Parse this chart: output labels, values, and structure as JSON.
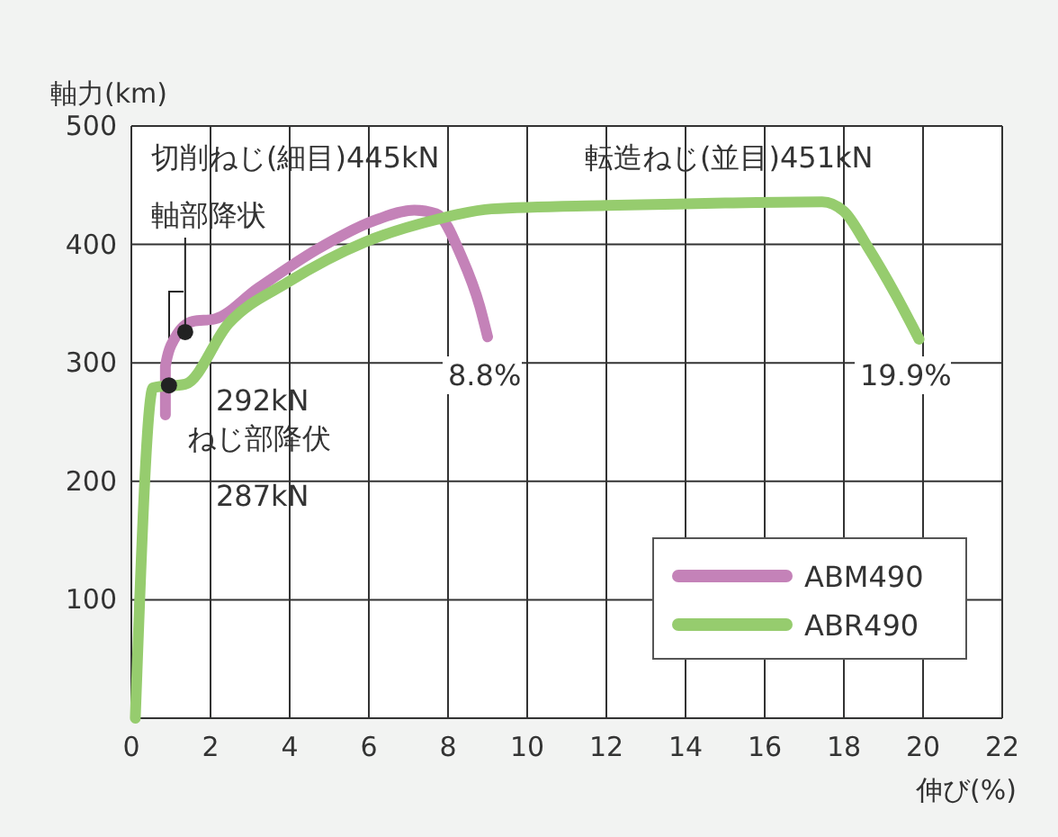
{
  "chart_data": {
    "type": "line",
    "xlabel": "伸び(%)",
    "ylabel": "軸力(km)",
    "xlim": [
      0,
      22
    ],
    "xticks": [
      0,
      2,
      4,
      6,
      8,
      10,
      12,
      14,
      16,
      18,
      20,
      22
    ],
    "ylim": [
      0,
      500
    ],
    "yticks": [
      {
        "value": 0,
        "label": null
      },
      100,
      200,
      300,
      400,
      500
    ],
    "grid": true,
    "legend": "bottom right",
    "marker": "none",
    "line_style": "solid",
    "series": [
      {
        "name": "ABM490",
        "color": "#c482b8",
        "x": [
          0.86,
          0.86,
          1.1,
          1.55,
          2.1,
          3.2,
          4.7,
          6.2,
          7.15,
          7.7,
          8.35,
          8.8,
          9.0
        ],
        "values": [
          256,
          297,
          321,
          335,
          337,
          363,
          396,
          421,
          429,
          426,
          389,
          348,
          322
        ]
      },
      {
        "name": "ABR490",
        "color": "#96cc6e",
        "x": [
          0.1,
          0.55,
          1.36,
          2.45,
          3.95,
          5.9,
          7.7,
          9.1,
          12,
          15,
          17.45,
          18.0,
          18.6,
          19.3,
          19.9
        ],
        "values": [
          0,
          279,
          282,
          333,
          368,
          402,
          421,
          430,
          433,
          435,
          436,
          428,
          398,
          358,
          320
        ]
      },
      {
        "type": "scatter",
        "color": "#222222",
        "marker": "circle",
        "x": [
          0.95,
          1.36
        ],
        "values": [
          281,
          326
        ]
      }
    ],
    "annotations": [
      "切削ねじ(細目)445kN",
      "転造ねじ(並目)451kN",
      {
        "text": "軸部降状",
        "x": 1.36,
        "y": 326
      },
      "292kN",
      "ねじ部降伏",
      "287kN",
      "8.8%",
      "19.9%"
    ]
  }
}
